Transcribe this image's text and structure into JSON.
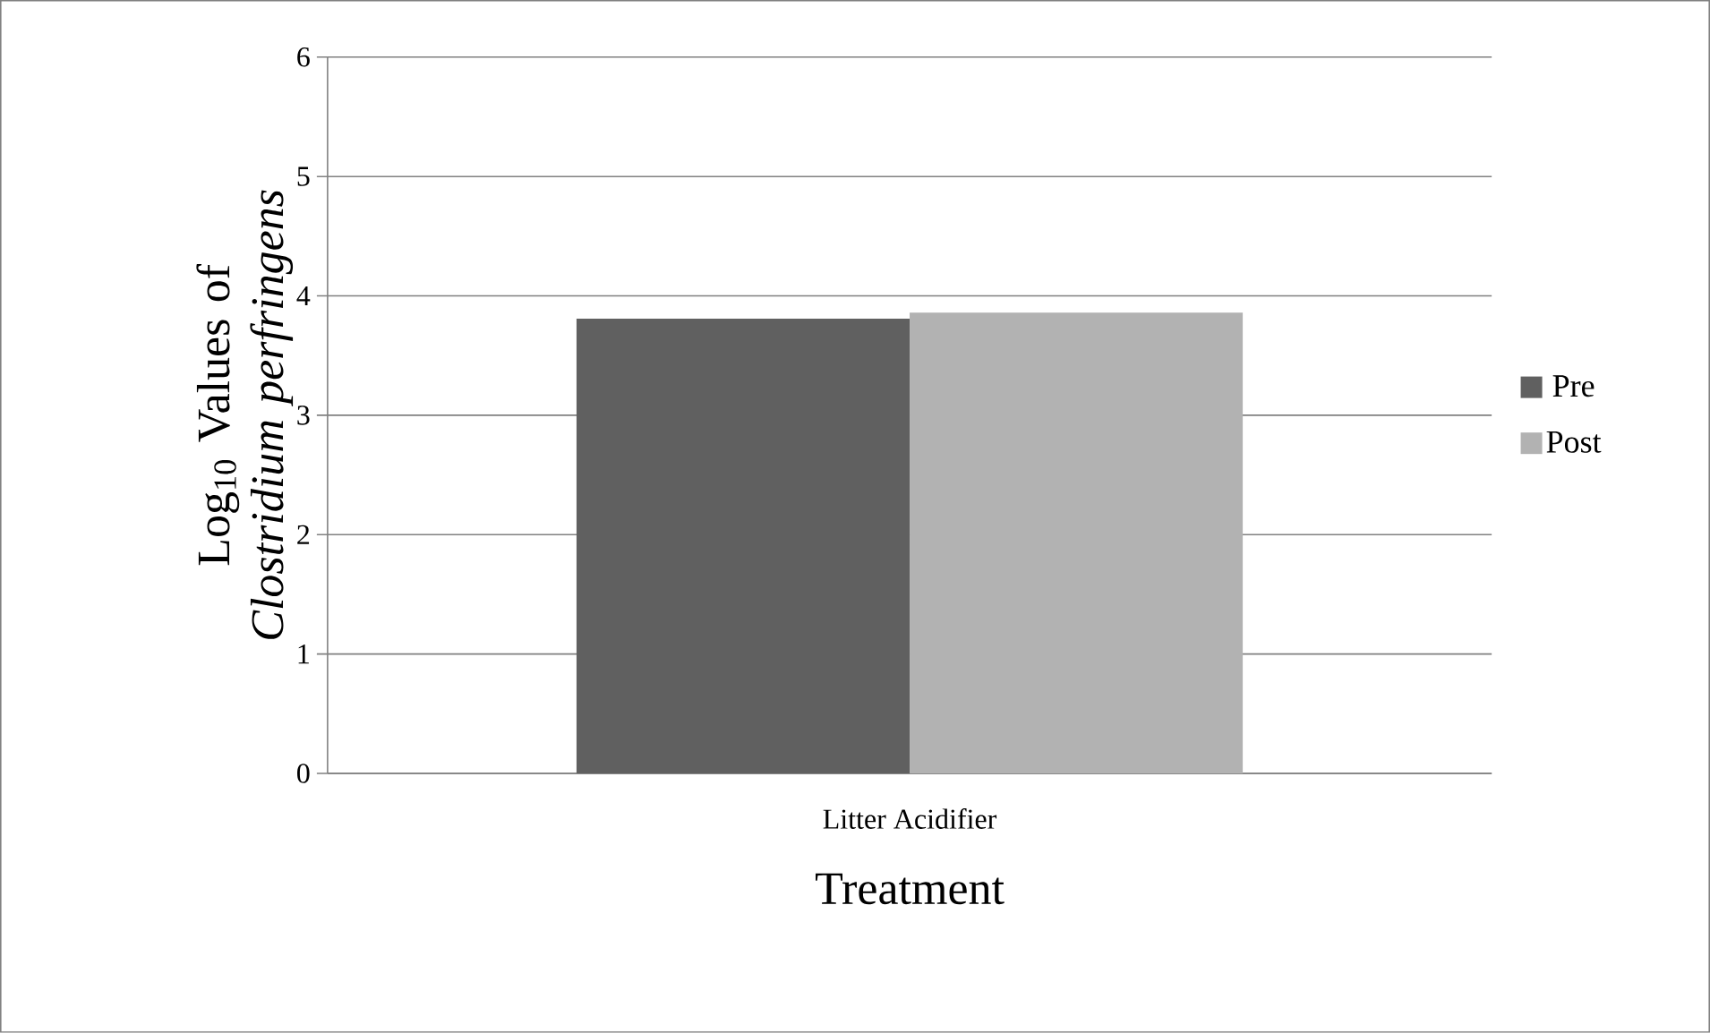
{
  "chart_data": {
    "type": "bar",
    "xlabel": "Treatment",
    "ylabel": "Log$_{10}$ Values of *Clostridium perfringens*",
    "categories": [
      "Litter Acidifier"
    ],
    "series": [
      {
        "name": "Pre",
        "color": "#606060",
        "values": [
          3.81
        ]
      },
      {
        "name": "Post",
        "color": "#b2b2b2",
        "values": [
          3.86
        ]
      }
    ],
    "ylim": [
      0,
      6
    ],
    "yticks": [
      0,
      1,
      2,
      3,
      4,
      5,
      6
    ],
    "grid": "y",
    "legend": "right"
  }
}
